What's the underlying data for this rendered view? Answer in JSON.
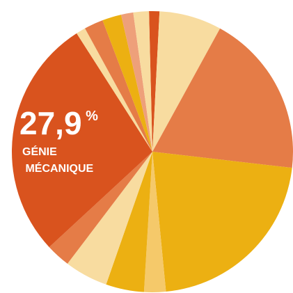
{
  "chart_data": {
    "type": "pie",
    "categories": [
      null,
      null,
      null,
      null,
      null,
      null,
      null,
      null,
      "GÉNIE MÉCANIQUE",
      null,
      null,
      null,
      null,
      null
    ],
    "values": [
      1.2,
      7.2,
      18.9,
      21.7,
      2.5,
      4.4,
      5.0,
      2.8,
      27.9,
      1.1,
      2.2,
      2.2,
      1.4,
      1.8
    ],
    "value_labels": [
      null,
      null,
      null,
      null,
      null,
      null,
      null,
      null,
      "27,9 %",
      null,
      null,
      null,
      null,
      null
    ],
    "colors": [
      "#d9531e",
      "#f8dca0",
      "#e57c47",
      "#ecb012",
      "#f5c96a",
      "#ecb012",
      "#f8dca0",
      "#e57c47",
      "#d9531e",
      "#f8dca0",
      "#e57c47",
      "#ecb012",
      "#eea07a",
      "#f8dca0"
    ]
  }
}
